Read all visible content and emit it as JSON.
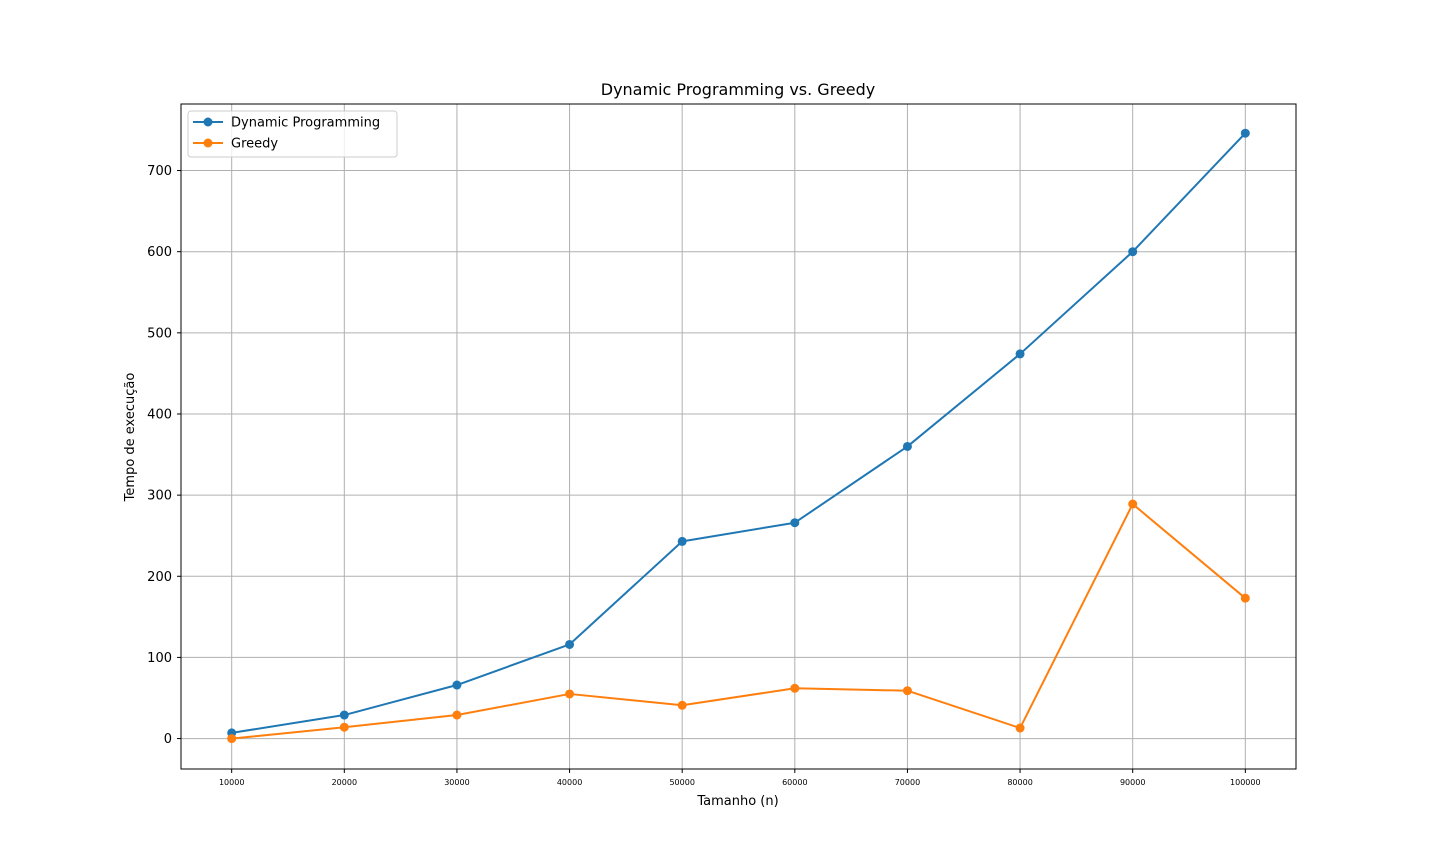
{
  "chart_data": {
    "type": "line",
    "title": "Dynamic Programming vs. Greedy",
    "xlabel": "Tamanho (n)",
    "ylabel": "Tempo de execução",
    "x": [
      10000,
      20000,
      30000,
      40000,
      50000,
      60000,
      70000,
      80000,
      90000,
      100000
    ],
    "xticks": [
      "10000",
      "20000",
      "30000",
      "40000",
      "50000",
      "60000",
      "70000",
      "80000",
      "90000",
      "100000"
    ],
    "xlim": [
      5500,
      104500
    ],
    "yticks": [
      "0",
      "100",
      "200",
      "300",
      "400",
      "500",
      "600",
      "700"
    ],
    "ytick_values": [
      0,
      100,
      200,
      300,
      400,
      500,
      600,
      700
    ],
    "ylim": [
      -37.5,
      782
    ],
    "grid": true,
    "legend": "upper-left",
    "series": [
      {
        "name": "Dynamic Programming",
        "color": "#1f77b4",
        "marker": "circle",
        "values": [
          7,
          29,
          66,
          116,
          243,
          266,
          360,
          474,
          600,
          746
        ]
      },
      {
        "name": "Greedy",
        "color": "#ff7f0e",
        "marker": "circle",
        "values": [
          0,
          14,
          29,
          55,
          41,
          62,
          59,
          13,
          289,
          173
        ]
      }
    ]
  }
}
